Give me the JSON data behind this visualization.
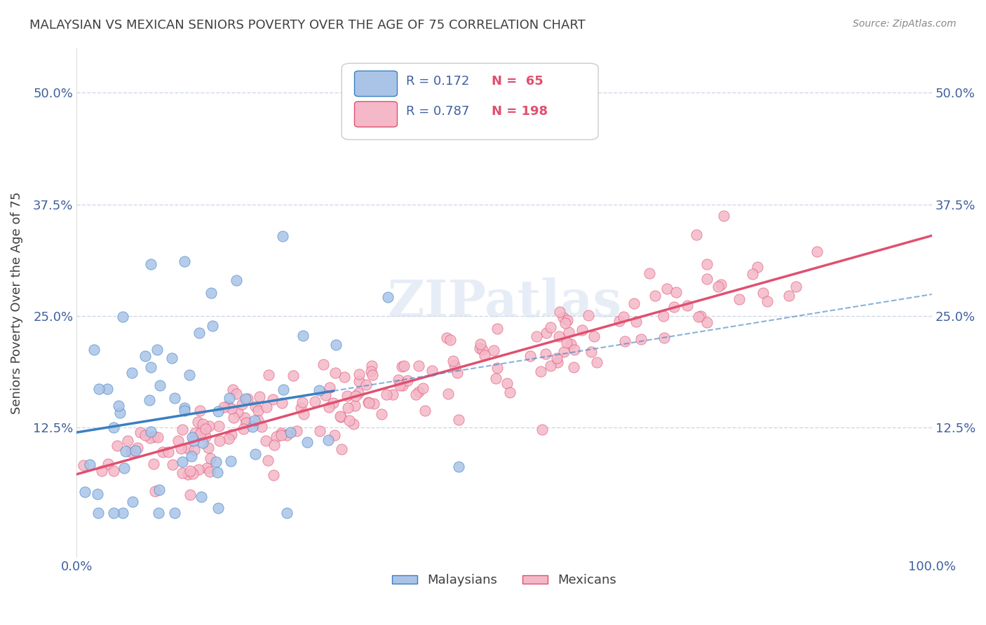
{
  "title": "MALAYSIAN VS MEXICAN SENIORS POVERTY OVER THE AGE OF 75 CORRELATION CHART",
  "source": "Source: ZipAtlas.com",
  "ylabel": "Seniors Poverty Over the Age of 75",
  "xlabel": "",
  "xlim": [
    0,
    1.0
  ],
  "ylim": [
    -0.02,
    0.55
  ],
  "yticks": [
    0.125,
    0.25,
    0.375,
    0.5
  ],
  "ytick_labels": [
    "12.5%",
    "25.0%",
    "37.5%",
    "50.0%"
  ],
  "xticks": [
    0.0,
    0.25,
    0.5,
    0.75,
    1.0
  ],
  "xtick_labels": [
    "0.0%",
    "",
    "",
    "",
    "100.0%"
  ],
  "malaysian_color": "#aac4e8",
  "mexican_color": "#f4b8c8",
  "malaysian_line_color": "#3a7fc1",
  "mexican_line_color": "#e05070",
  "legend_R_malaysian": "R = 0.172",
  "legend_N_malaysian": "N =  65",
  "legend_R_mexican": "R = 0.787",
  "legend_N_mexican": "N = 198",
  "watermark": "ZIPatlas",
  "background_color": "#ffffff",
  "grid_color": "#d0d8e8",
  "title_color": "#404040",
  "axis_label_color": "#404040",
  "tick_label_color": "#4060a0",
  "legend_R_color": "#4060a0",
  "legend_N_color": "#e05070",
  "malaysian_R": 0.172,
  "malaysian_N": 65,
  "mexican_R": 0.787,
  "mexican_N": 198,
  "seed_malaysian": 42,
  "seed_mexican": 99
}
